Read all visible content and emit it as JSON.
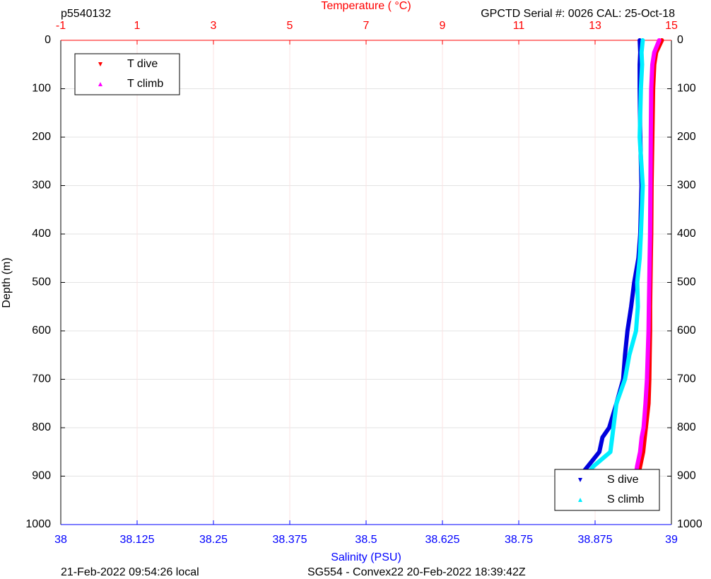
{
  "chart_data": {
    "type": "line",
    "title_left": "p5540132",
    "title_right": "GPCTD Serial #: 0026 CAL: 25-Oct-18",
    "x2_label": "Temperature (    °C)",
    "x_label": "Salinity (PSU)",
    "y_label": "Depth (m)",
    "footer_left": "21-Feb-2022 09:54:26 local",
    "footer_right": "SG554 - Convex22 20-Feb-2022 18:39:42Z",
    "xlim": [
      38,
      39
    ],
    "xticks": [
      38,
      38.125,
      38.25,
      38.375,
      38.5,
      38.625,
      38.75,
      38.875,
      39
    ],
    "x2lim": [
      -1,
      15
    ],
    "x2ticks": [
      -1,
      1,
      3,
      5,
      7,
      9,
      11,
      13,
      15
    ],
    "ylim": [
      0,
      1000
    ],
    "yticks": [
      0,
      100,
      200,
      300,
      400,
      500,
      600,
      700,
      800,
      900,
      1000
    ],
    "y_reversed": true,
    "grid": true,
    "x_color": "#0000ff",
    "x2_color": "#ff0000",
    "legend_x2": "northwest",
    "legend_x": "southeast",
    "y": [
      0,
      25,
      50,
      100,
      200,
      300,
      400,
      450,
      500,
      550,
      600,
      650,
      700,
      750,
      800,
      820,
      850,
      880,
      900,
      920,
      950
    ],
    "series": [
      {
        "name": "T dive",
        "color": "#ff0000",
        "axis": "x2",
        "marker": "down",
        "values": [
          14.75,
          14.6,
          14.55,
          14.52,
          14.5,
          14.48,
          14.47,
          14.46,
          14.45,
          14.44,
          14.44,
          14.43,
          14.42,
          14.4,
          14.33,
          14.3,
          14.26,
          14.18,
          14.12,
          14.05,
          13.95
        ]
      },
      {
        "name": "T climb",
        "color": "#ff00ff",
        "axis": "x2",
        "marker": "up",
        "values": [
          14.68,
          14.55,
          14.5,
          14.47,
          14.46,
          14.45,
          14.44,
          14.43,
          14.42,
          14.41,
          14.4,
          14.38,
          14.36,
          14.32,
          14.27,
          14.22,
          14.18,
          14.1,
          14.06,
          14.0,
          13.92
        ]
      },
      {
        "name": "S dive",
        "color": "#0000dd",
        "axis": "x",
        "marker": "down",
        "values": [
          38.948,
          38.949,
          38.948,
          38.948,
          38.949,
          38.951,
          38.949,
          38.946,
          38.939,
          38.934,
          38.928,
          38.924,
          38.921,
          38.91,
          38.898,
          38.887,
          38.882,
          38.863,
          38.85,
          38.838,
          38.822
        ]
      },
      {
        "name": "S climb",
        "color": "#00eeff",
        "axis": "x",
        "marker": "up",
        "values": [
          38.953,
          38.951,
          38.952,
          38.95,
          38.948,
          38.953,
          38.95,
          38.948,
          38.944,
          38.945,
          38.942,
          38.931,
          38.924,
          38.91,
          38.905,
          38.903,
          38.9,
          38.872,
          38.861,
          38.842,
          38.823
        ]
      }
    ]
  }
}
